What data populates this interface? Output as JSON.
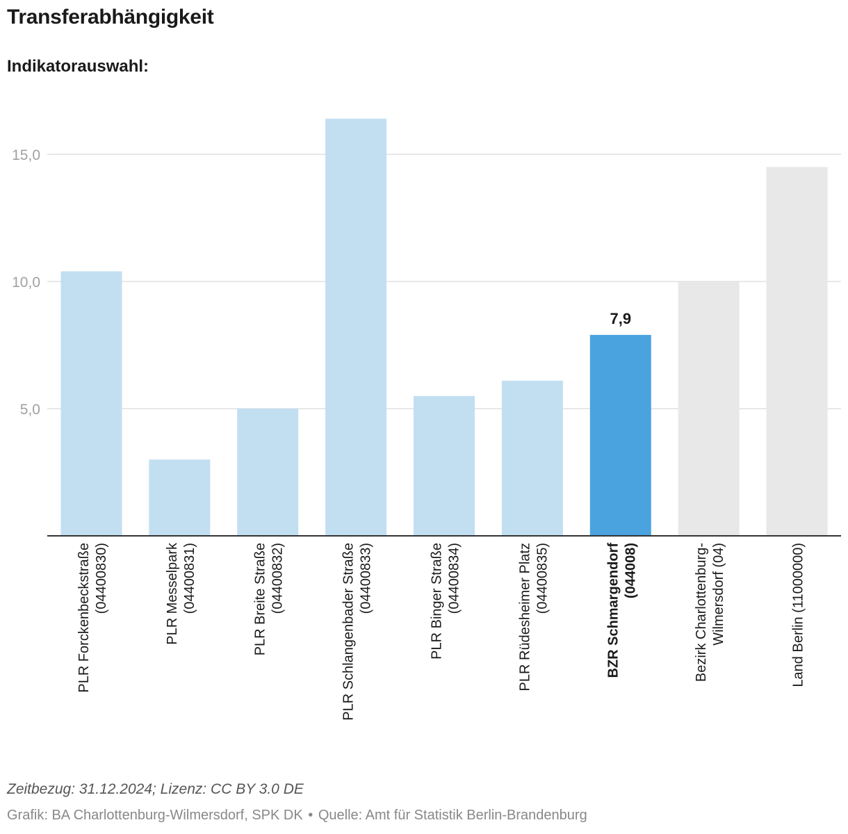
{
  "header": {
    "title": "Transferabhängigkeit",
    "subtitle": "Indikatorauswahl:"
  },
  "chart_data": {
    "type": "bar",
    "title": "Transferabhängigkeit",
    "xlabel": "",
    "ylabel": "",
    "ylim": [
      0,
      17
    ],
    "yticks": [
      5,
      10,
      15
    ],
    "ytick_labels": [
      "5,0",
      "10,0",
      "15,0"
    ],
    "grid": true,
    "categories": [
      [
        "PLR Forckenbeckstraße",
        "(04400830)"
      ],
      [
        "PLR Messelpark",
        "(04400831)"
      ],
      [
        "PLR Breite Straße",
        "(04400832)"
      ],
      [
        "PLR Schlangenbader Straße",
        "(04400833)"
      ],
      [
        "PLR Binger Straße",
        "(04400834)"
      ],
      [
        "PLR Rüdesheimer Platz",
        "(04400835)"
      ],
      [
        "BZR Schmargendorf",
        "(044008)"
      ],
      [
        "Bezirk Charlottenburg-",
        "Wilmersdorf (04)"
      ],
      [
        "Land Berlin (11000000)"
      ]
    ],
    "values": [
      10.4,
      3.0,
      5.0,
      16.4,
      5.5,
      6.1,
      7.9,
      10.0,
      14.5
    ],
    "colors": [
      "#c2dff2",
      "#c2dff2",
      "#c2dff2",
      "#c2dff2",
      "#c2dff2",
      "#c2dff2",
      "#4aa3de",
      "#e8e8e8",
      "#e8e8e8"
    ],
    "highlight_index": 6,
    "data_labels": [
      null,
      null,
      null,
      null,
      null,
      null,
      "7,9",
      null,
      null
    ]
  },
  "footer": {
    "notes": "Zeitbezug: 31.12.2024; Lizenz: CC BY 3.0 DE",
    "credit": "Grafik: BA Charlottenburg-Wilmersdorf, SPK DK",
    "separator": "•",
    "source": "Quelle: Amt für Statistik Berlin-Brandenburg"
  }
}
